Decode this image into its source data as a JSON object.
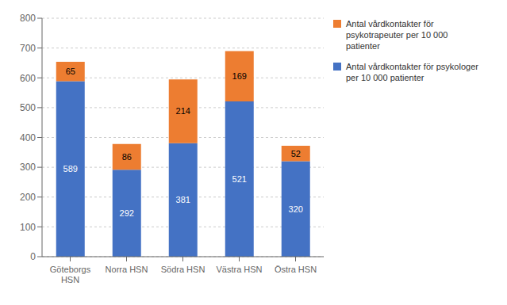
{
  "chart_data": {
    "type": "bar",
    "stacked": true,
    "categories": [
      "Göteborgs\nHSN",
      "Norra HSN",
      "Södra HSN",
      "Västra HSN",
      "Östra HSN"
    ],
    "series": [
      {
        "name": "Antal vårdkontakter för psykologer\nper 10 000 patienter",
        "color": "#4472C4",
        "values": [
          589,
          292,
          381,
          521,
          320
        ]
      },
      {
        "name": "Antal vårdkontakter för\npsykotrapeuter per 10 000\npatienter",
        "color": "#ED7D31",
        "values": [
          65,
          86,
          214,
          169,
          52
        ]
      }
    ],
    "ylim": [
      0,
      800
    ],
    "yticks": [
      0,
      100,
      200,
      300,
      400,
      500,
      600,
      700,
      800
    ],
    "grid": true,
    "legend": "right",
    "data_labels": true
  }
}
